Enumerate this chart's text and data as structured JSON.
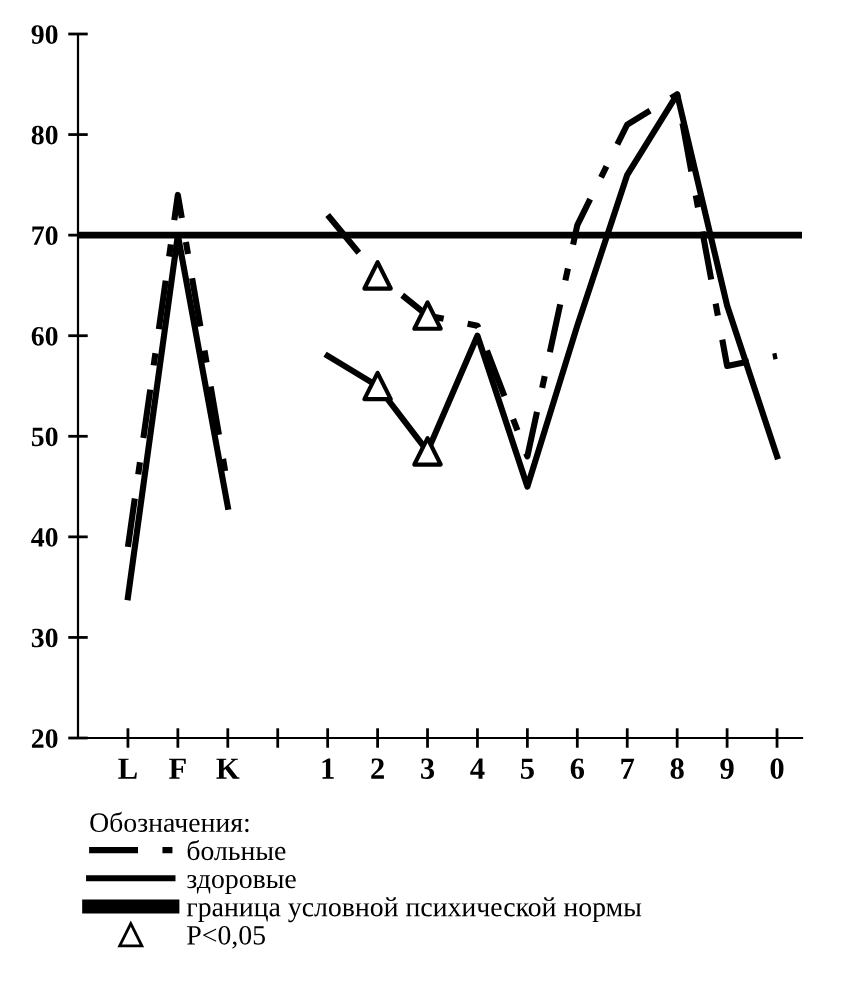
{
  "chart_data": {
    "type": "line",
    "categories": [
      "L",
      "F",
      "K",
      null,
      "1",
      "2",
      "3",
      "4",
      "5",
      "6",
      "7",
      "8",
      "9",
      "0"
    ],
    "series": [
      {
        "name": "больные",
        "color": "#000000",
        "line_style": "dashdot",
        "values": [
          39,
          74,
          45,
          null,
          72,
          66,
          62,
          61,
          48,
          71,
          81,
          84,
          57,
          58
        ]
      },
      {
        "name": "здоровые",
        "color": "#000000",
        "line_style": "solid",
        "values": [
          34,
          70,
          43,
          null,
          58,
          55,
          48.5,
          60,
          45,
          61,
          76,
          84,
          63,
          48
        ]
      },
      {
        "name": "P<0,05",
        "type": "scatter",
        "marker": "triangle",
        "color": "#000000",
        "x": [
          "2",
          "3",
          "2",
          "3"
        ],
        "values": [
          55,
          48.5,
          66,
          62
        ]
      }
    ],
    "ylim": [
      20,
      90
    ],
    "yticks": [
      20,
      30,
      40,
      50,
      60,
      70,
      80,
      90
    ],
    "ref_lines": [
      {
        "axis": "y",
        "value": 70,
        "label": "граница условной психической нормы",
        "color": "#000000"
      }
    ],
    "legend_title": "Обозначения:",
    "legend": "bottom",
    "grid": false
  }
}
